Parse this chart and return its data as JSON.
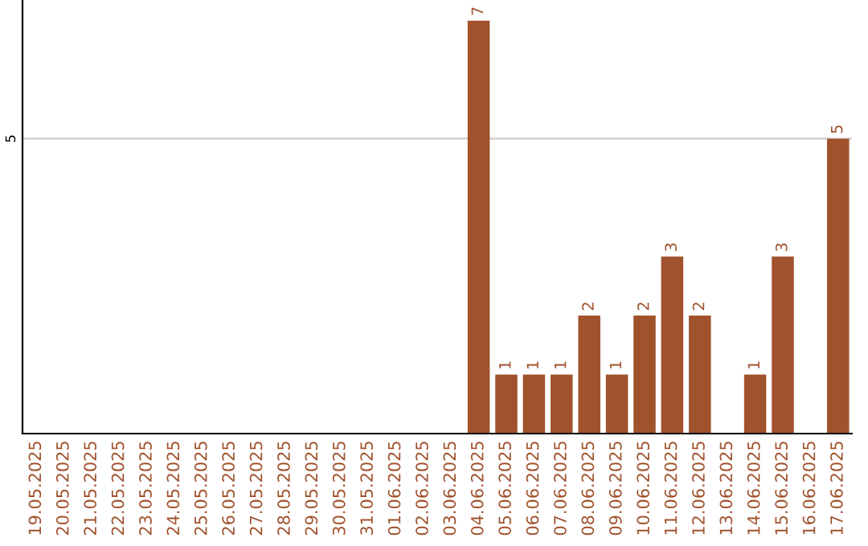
{
  "chart_data": {
    "type": "bar",
    "categories": [
      "19.05.2025",
      "20.05.2025",
      "21.05.2025",
      "22.05.2025",
      "23.05.2025",
      "24.05.2025",
      "25.05.2025",
      "26.05.2025",
      "27.05.2025",
      "28.05.2025",
      "29.05.2025",
      "30.05.2025",
      "31.05.2025",
      "01.06.2025",
      "02.06.2025",
      "03.06.2025",
      "04.06.2025",
      "05.06.2025",
      "06.06.2025",
      "07.06.2025",
      "08.06.2025",
      "09.06.2025",
      "10.06.2025",
      "11.06.2025",
      "12.06.2025",
      "13.06.2025",
      "14.06.2025",
      "15.06.2025",
      "16.06.2025",
      "17.06.2025"
    ],
    "values": [
      null,
      null,
      null,
      null,
      null,
      null,
      null,
      null,
      null,
      null,
      null,
      null,
      null,
      null,
      null,
      null,
      7,
      1,
      1,
      1,
      2,
      1,
      2,
      3,
      2,
      null,
      1,
      3,
      null,
      5
    ],
    "data_labels": true,
    "color": "#a0522d",
    "ref_lines": [
      {
        "axis": "y",
        "value": 5,
        "label": "5",
        "color": "#cccccc"
      }
    ]
  }
}
